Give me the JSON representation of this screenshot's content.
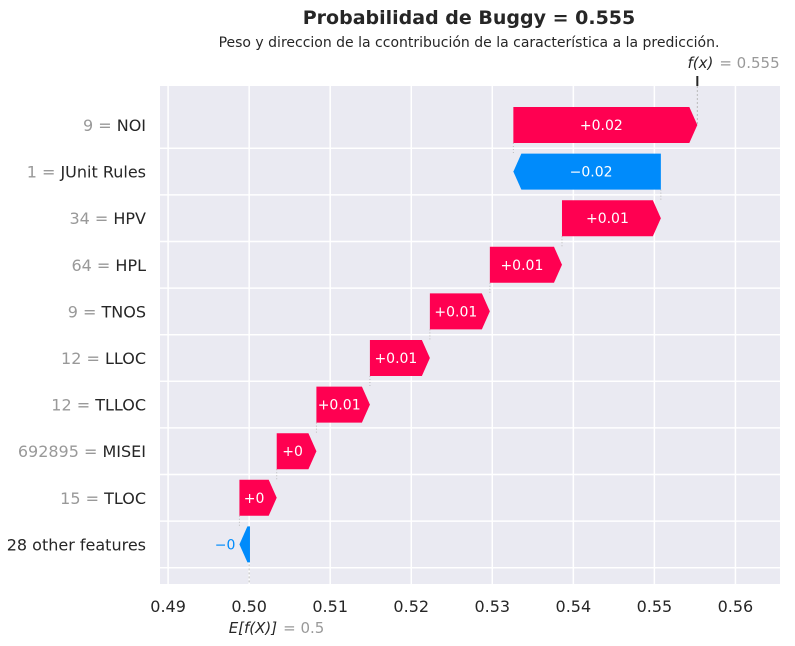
{
  "chart_data": {
    "type": "waterfall",
    "title": "Probabilidad de Buggy = 0.555",
    "subtitle": "Peso y direccion de la ccontribución de la característica a la predicción.",
    "fx_label": "f(x)",
    "fx_value_text": "= 0.555",
    "fx_value": 0.5553,
    "ex_label": "E[f(X)]",
    "ex_value_text": "= 0.5",
    "ex_value": 0.5,
    "xlim": [
      0.489,
      0.5655
    ],
    "xticks": [
      "0.49",
      "0.50",
      "0.51",
      "0.52",
      "0.53",
      "0.54",
      "0.55",
      "0.56"
    ],
    "grid": true,
    "colors": {
      "positive": "#ff0051",
      "negative": "#008bfb",
      "background": "#eaeaf2"
    },
    "features": [
      {
        "value": "9",
        "name": "NOI",
        "start": 0.5326,
        "end": 0.5553,
        "label": "+0.02"
      },
      {
        "value": "1",
        "name": "JUnit Rules",
        "start": 0.5508,
        "end": 0.5326,
        "label": "−0.02"
      },
      {
        "value": "34",
        "name": "HPV",
        "start": 0.5386,
        "end": 0.5508,
        "label": "+0.01"
      },
      {
        "value": "64",
        "name": "HPL",
        "start": 0.5297,
        "end": 0.5386,
        "label": "+0.01"
      },
      {
        "value": "9",
        "name": "TNOS",
        "start": 0.5223,
        "end": 0.5297,
        "label": "+0.01"
      },
      {
        "value": "12",
        "name": "LLOC",
        "start": 0.5149,
        "end": 0.5223,
        "label": "+0.01"
      },
      {
        "value": "12",
        "name": "TLLOC",
        "start": 0.5083,
        "end": 0.5149,
        "label": "+0.01"
      },
      {
        "value": "692895",
        "name": "MISEI",
        "start": 0.5034,
        "end": 0.5083,
        "label": "+0"
      },
      {
        "value": "15",
        "name": "TLOC",
        "start": 0.4988,
        "end": 0.5034,
        "label": "+0"
      },
      {
        "value": "",
        "name": "28 other features",
        "start": 0.5001,
        "end": 0.4988,
        "label": "−0"
      }
    ]
  }
}
